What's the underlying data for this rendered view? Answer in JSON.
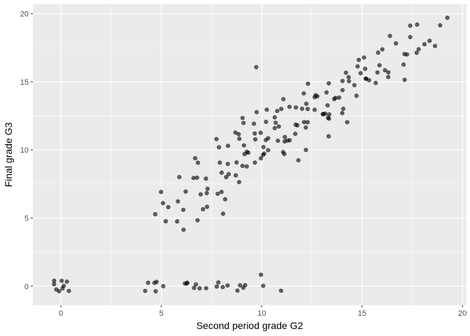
{
  "chart_data": {
    "type": "scatter",
    "xlabel": "Second period grade G2",
    "ylabel": "Final grade G3",
    "xlim": [
      -1.4,
      20.2
    ],
    "ylim": [
      -1.4,
      20.7
    ],
    "x_ticks": [
      0,
      5,
      10,
      15,
      20
    ],
    "y_ticks": [
      0,
      5,
      10,
      15,
      20
    ],
    "x_tick_labels": [
      "0",
      "5",
      "10",
      "15",
      "20"
    ],
    "y_tick_labels": [
      "0",
      "5",
      "10",
      "15",
      "20"
    ],
    "grid": true,
    "point_alpha": 0.6,
    "colors": {
      "panel": "#EBEBEB",
      "grid": "#FFFFFF",
      "point": "#000000",
      "tick_text": "#4D4D4D",
      "axis_title": "#000000"
    },
    "x": [
      0,
      0,
      0,
      0,
      0,
      0,
      0,
      0,
      0,
      4,
      4,
      5,
      5,
      5,
      5,
      6,
      6,
      6,
      7,
      7,
      7,
      7,
      8,
      8,
      8,
      8,
      9,
      9,
      9,
      9,
      10,
      10,
      11,
      5,
      5,
      5,
      5,
      5,
      6,
      6,
      6,
      6,
      6,
      6,
      7,
      7,
      7,
      7,
      7,
      7,
      7,
      7,
      7,
      7,
      7,
      8,
      8,
      8,
      8,
      8,
      8,
      8,
      8,
      8,
      8,
      8,
      8,
      9,
      9,
      9,
      9,
      9,
      9,
      9,
      9,
      9,
      9,
      9,
      9,
      9,
      9,
      10,
      10,
      10,
      10,
      10,
      10,
      10,
      10,
      10,
      10,
      10,
      10,
      10,
      10,
      10,
      10,
      11,
      11,
      11,
      11,
      11,
      11,
      11,
      11,
      11,
      11,
      11,
      11,
      11,
      11,
      11,
      12,
      12,
      12,
      12,
      12,
      12,
      12,
      12,
      12,
      12,
      12,
      12,
      12,
      12,
      13,
      13,
      13,
      13,
      13,
      13,
      13,
      13,
      13,
      13,
      13,
      13,
      13,
      13,
      14,
      14,
      14,
      14,
      14,
      14,
      14,
      14,
      14,
      14,
      14,
      15,
      15,
      15,
      15,
      15,
      15,
      15,
      15,
      15,
      15,
      16,
      16,
      16,
      16,
      16,
      16,
      16,
      16,
      16,
      17,
      17,
      17,
      17,
      17,
      17,
      17,
      18,
      18,
      18,
      18,
      18,
      19,
      19,
      19
    ],
    "y": [
      0,
      0,
      0,
      0,
      0,
      0,
      0,
      0,
      0,
      0,
      0,
      0,
      0,
      0,
      0,
      0,
      0,
      0,
      0,
      0,
      0,
      0,
      0,
      0,
      0,
      0,
      0,
      0,
      0,
      0,
      0,
      1,
      0,
      5,
      5,
      6,
      6,
      7,
      4,
      5,
      6,
      6,
      7,
      8,
      5,
      6,
      6,
      7,
      7,
      7,
      8,
      8,
      8,
      9,
      9,
      5,
      6,
      7,
      7,
      8,
      8,
      8,
      9,
      9,
      10,
      10,
      11,
      8,
      8,
      9,
      9,
      9,
      10,
      10,
      10,
      10,
      11,
      11,
      11,
      12,
      12,
      9,
      9,
      10,
      10,
      10,
      10,
      11,
      11,
      11,
      11,
      11,
      12,
      12,
      13,
      13,
      16,
      10,
      10,
      11,
      11,
      11,
      11,
      11,
      12,
      12,
      12,
      12,
      13,
      13,
      13,
      14,
      9,
      10,
      11,
      12,
      12,
      12,
      12,
      12,
      13,
      13,
      13,
      13,
      14,
      15,
      11,
      12,
      12,
      13,
      13,
      13,
      13,
      13,
      13,
      14,
      14,
      14,
      14,
      15,
      12,
      13,
      13,
      14,
      14,
      14,
      14,
      15,
      15,
      15,
      16,
      14,
      15,
      15,
      15,
      15,
      16,
      16,
      16,
      17,
      17,
      15,
      15,
      16,
      16,
      16,
      16,
      17,
      17,
      18,
      15,
      16,
      17,
      17,
      18,
      18,
      19,
      17,
      17,
      18,
      18,
      19,
      18,
      19,
      20
    ]
  }
}
